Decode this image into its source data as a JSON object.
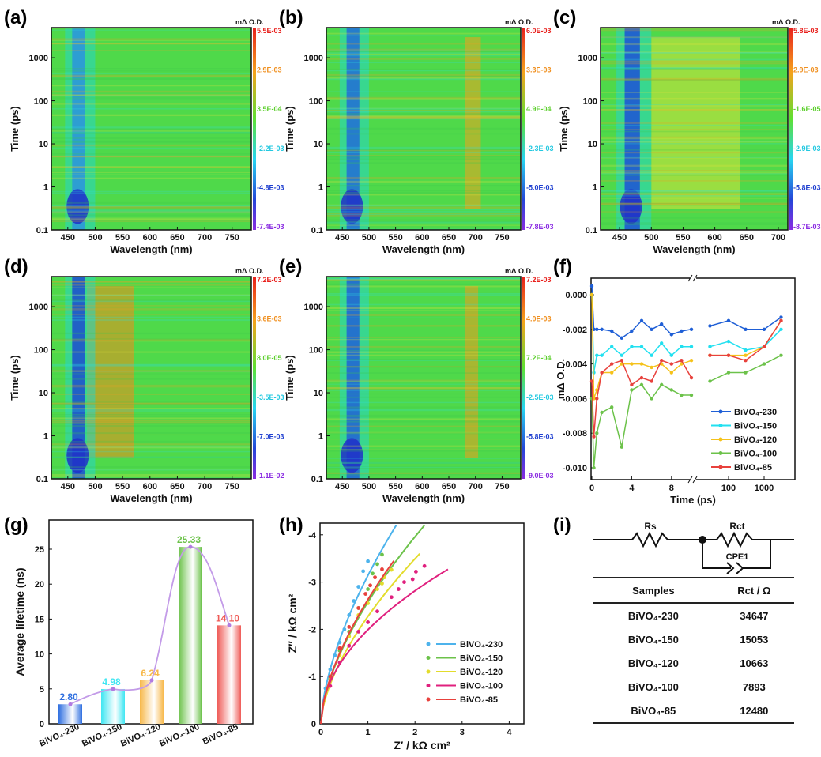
{
  "panel_labels": [
    "(a)",
    "(b)",
    "(c)",
    "(d)",
    "(e)",
    "(f)",
    "(g)",
    "(h)",
    "(i)"
  ],
  "chart_data": [
    {
      "id": "a",
      "type": "heatmap",
      "xlabel": "Wavelength (nm)",
      "ylabel": "Time (ps)",
      "xlim": [
        420,
        785
      ],
      "xticks": [
        "450",
        "500",
        "550",
        "600",
        "650",
        "700",
        "750"
      ],
      "yticks": [
        "0.1",
        "1",
        "10",
        "100",
        "1000"
      ],
      "ylim": [
        0.1,
        5000
      ],
      "yscale": "log",
      "colorbar_title": "mΔ O.D.",
      "colorbar_labels": [
        "5.5E-03",
        "2.9E-03",
        "3.5E-04",
        "-2.2E-03",
        "-4.8E-03",
        "-7.4E-03"
      ]
    },
    {
      "id": "b",
      "type": "heatmap",
      "xlabel": "Wavelength (nm)",
      "ylabel": "Time (ps)",
      "xlim": [
        420,
        785
      ],
      "xticks": [
        "450",
        "500",
        "550",
        "600",
        "650",
        "700",
        "750"
      ],
      "yticks": [
        "0.1",
        "1",
        "10",
        "100",
        "1000"
      ],
      "ylim": [
        0.1,
        5000
      ],
      "yscale": "log",
      "colorbar_title": "mΔ O.D.",
      "colorbar_labels": [
        "6.0E-03",
        "3.3E-03",
        "4.9E-04",
        "-2.3E-03",
        "-5.0E-03",
        "-7.8E-03"
      ]
    },
    {
      "id": "c",
      "type": "heatmap",
      "xlabel": "Wavelength (nm)",
      "ylabel": "Time (ps)",
      "xlim": [
        420,
        715
      ],
      "xticks": [
        "450",
        "500",
        "550",
        "600",
        "650",
        "700"
      ],
      "yticks": [
        "0.1",
        "1",
        "10",
        "100",
        "1000"
      ],
      "ylim": [
        0.1,
        5000
      ],
      "yscale": "log",
      "colorbar_title": "mΔ O.D.",
      "colorbar_labels": [
        "5.8E-03",
        "2.9E-03",
        "-1.6E-05",
        "-2.9E-03",
        "-5.8E-03",
        "-8.7E-03"
      ]
    },
    {
      "id": "d",
      "type": "heatmap",
      "xlabel": "Wavelength (nm)",
      "ylabel": "Time (ps)",
      "xlim": [
        420,
        785
      ],
      "xticks": [
        "450",
        "500",
        "550",
        "600",
        "650",
        "700",
        "750"
      ],
      "yticks": [
        "0.1",
        "1",
        "10",
        "100",
        "1000"
      ],
      "ylim": [
        0.1,
        5000
      ],
      "yscale": "log",
      "colorbar_title": "mΔ O.D.",
      "colorbar_labels": [
        "7.2E-03",
        "3.6E-03",
        "8.0E-05",
        "-3.5E-03",
        "-7.0E-03",
        "-1.1E-02"
      ]
    },
    {
      "id": "e",
      "type": "heatmap",
      "xlabel": "Wavelength (nm)",
      "ylabel": "Time (ps)",
      "xlim": [
        420,
        785
      ],
      "xticks": [
        "450",
        "500",
        "550",
        "600",
        "650",
        "700",
        "750"
      ],
      "yticks": [
        "0.1",
        "1",
        "10",
        "100",
        "1000"
      ],
      "ylim": [
        0.1,
        5000
      ],
      "yscale": "log",
      "colorbar_title": "mΔ O.D.",
      "colorbar_labels": [
        "7.2E-03",
        "4.0E-03",
        "7.2E-04",
        "-2.5E-03",
        "-5.8E-03",
        "-9.0E-03"
      ]
    },
    {
      "id": "f",
      "type": "line",
      "xlabel": "Time (ps)",
      "ylabel": "mΔ O.D.",
      "xscale": "linear 0-10 then log (broken axis)",
      "ylim": [
        -0.0107,
        0.001
      ],
      "xticks": [
        "0",
        "4",
        "8",
        "100",
        "1000"
      ],
      "yticks": [
        "0.000",
        "-0.002",
        "-0.004",
        "-0.006",
        "-0.008",
        "-0.010"
      ],
      "legend_position": "bottom-right",
      "x": [
        0,
        0.2,
        0.5,
        1,
        2,
        3,
        4,
        5,
        6,
        7,
        8,
        9,
        10,
        30,
        100,
        300,
        1000,
        3000
      ],
      "series": [
        {
          "name": "BiVO₄-230",
          "color": "#1f5fd6",
          "values": [
            0.0005,
            -0.002,
            -0.002,
            -0.002,
            -0.0021,
            -0.0025,
            -0.0021,
            -0.0015,
            -0.002,
            -0.0017,
            -0.0023,
            -0.0021,
            -0.002,
            -0.0018,
            -0.0015,
            -0.002,
            -0.002,
            -0.0013
          ]
        },
        {
          "name": "BiVO₄-150",
          "color": "#22e0f0",
          "values": [
            0,
            -0.0045,
            -0.0035,
            -0.0035,
            -0.003,
            -0.0035,
            -0.003,
            -0.003,
            -0.0035,
            -0.0028,
            -0.0035,
            -0.003,
            -0.003,
            -0.003,
            -0.0027,
            -0.0032,
            -0.003,
            -0.002
          ]
        },
        {
          "name": "BiVO₄-120",
          "color": "#f5c21b",
          "values": [
            0,
            -0.006,
            -0.0055,
            -0.0045,
            -0.0045,
            -0.004,
            -0.004,
            -0.004,
            -0.0042,
            -0.004,
            -0.0045,
            -0.004,
            -0.0038,
            -0.0035,
            -0.0035,
            -0.0035,
            -0.003,
            -0.0015
          ]
        },
        {
          "name": "BiVO₄-100",
          "color": "#6cc24a",
          "values": [
            -0.006,
            -0.01,
            -0.008,
            -0.0068,
            -0.0065,
            -0.0088,
            -0.0055,
            -0.0052,
            -0.006,
            -0.0052,
            -0.0055,
            -0.0058,
            -0.0058,
            -0.005,
            -0.0045,
            -0.0045,
            -0.004,
            -0.0035
          ]
        },
        {
          "name": "BiVO₄-85",
          "color": "#e8413c",
          "values": [
            -0.005,
            -0.0082,
            -0.006,
            -0.0045,
            -0.004,
            -0.0038,
            -0.0052,
            -0.0048,
            -0.005,
            -0.0038,
            -0.004,
            -0.0038,
            -0.0048,
            -0.0035,
            -0.0035,
            -0.0038,
            -0.003,
            -0.0015
          ]
        }
      ]
    },
    {
      "id": "g",
      "type": "bar",
      "ylabel": "Average lifetime (ns)",
      "ylim": [
        0,
        29.2
      ],
      "yticks": [
        "0",
        "5",
        "10",
        "15",
        "20",
        "25"
      ],
      "categories": [
        "BiVO₄-230",
        "BiVO₄-150",
        "BiVO₄-120",
        "BiVO₄-100",
        "BiVO₄-85"
      ],
      "values": [
        2.8,
        4.98,
        6.24,
        25.33,
        14.1
      ],
      "labels": [
        "2.80",
        "4.98",
        "6.24",
        "25.33",
        "14.10"
      ],
      "colors": [
        "#2f6fe0",
        "#3fe6f2",
        "#f7b84a",
        "#6cc24a",
        "#ef5b57"
      ],
      "trend_color": "#c39be8"
    },
    {
      "id": "h",
      "type": "scatter",
      "xlabel": "Z′ / kΩ cm²",
      "ylabel": "Z″ / kΩ cm²",
      "xlim": [
        0,
        4.32
      ],
      "ylim": [
        0,
        -4.3
      ],
      "xticks": [
        "0",
        "1",
        "2",
        "3",
        "4"
      ],
      "yticks": [
        "0",
        "-1",
        "-2",
        "-3",
        "-4"
      ],
      "legend_position": "bottom-right",
      "series": [
        {
          "name": "BiVO₄-230",
          "color": "#4db3ec",
          "fit_end": [
            1.6,
            -4.2
          ],
          "points": [
            [
              0.1,
              -0.75
            ],
            [
              0.2,
              -1.15
            ],
            [
              0.3,
              -1.45
            ],
            [
              0.4,
              -1.72
            ],
            [
              0.5,
              -2.0
            ],
            [
              0.6,
              -2.3
            ],
            [
              0.7,
              -2.6
            ],
            [
              0.8,
              -2.9
            ],
            [
              0.9,
              -3.23
            ],
            [
              1.0,
              -3.44
            ]
          ]
        },
        {
          "name": "BiVO₄-150",
          "color": "#6cc24a",
          "fit_end": [
            2.2,
            -4.2
          ],
          "points": [
            [
              0.2,
              -1.0
            ],
            [
              0.4,
              -1.55
            ],
            [
              0.6,
              -1.95
            ],
            [
              0.8,
              -2.45
            ],
            [
              1.0,
              -2.85
            ],
            [
              1.1,
              -3.18
            ],
            [
              1.2,
              -3.38
            ],
            [
              1.3,
              -3.58
            ]
          ]
        },
        {
          "name": "BiVO₄-120",
          "color": "#e3dc2c",
          "fit_end": [
            2.1,
            -3.6
          ],
          "points": [
            [
              0.2,
              -0.95
            ],
            [
              0.4,
              -1.45
            ],
            [
              0.6,
              -1.85
            ],
            [
              0.8,
              -2.3
            ],
            [
              1.0,
              -2.55
            ],
            [
              1.2,
              -2.85
            ],
            [
              1.3,
              -2.97
            ],
            [
              1.35,
              -3.1
            ],
            [
              1.5,
              -3.26
            ]
          ]
        },
        {
          "name": "BiVO₄-100",
          "color": "#e0207e",
          "fit_end": [
            2.7,
            -3.27
          ],
          "points": [
            [
              0.2,
              -0.8
            ],
            [
              0.4,
              -1.3
            ],
            [
              0.6,
              -1.65
            ],
            [
              0.8,
              -1.95
            ],
            [
              1.0,
              -2.15
            ],
            [
              1.2,
              -2.38
            ],
            [
              1.5,
              -2.68
            ],
            [
              1.65,
              -2.85
            ],
            [
              1.77,
              -3.0
            ],
            [
              1.95,
              -3.06
            ],
            [
              2.02,
              -3.22
            ],
            [
              2.2,
              -3.34
            ]
          ]
        },
        {
          "name": "BiVO₄-85",
          "color": "#e8413c",
          "fit_end": [
            1.55,
            -3.45
          ],
          "points": [
            [
              0.2,
              -1.0
            ],
            [
              0.4,
              -1.6
            ],
            [
              0.6,
              -2.05
            ],
            [
              0.8,
              -2.45
            ],
            [
              0.95,
              -2.75
            ],
            [
              1.05,
              -2.93
            ],
            [
              1.15,
              -3.1
            ],
            [
              1.3,
              -3.27
            ]
          ]
        }
      ]
    },
    {
      "id": "i",
      "type": "table",
      "circuit": {
        "rs": "Rs",
        "rct": "Rct",
        "cpe": "CPE1"
      },
      "columns": [
        "Samples",
        "Rct / Ω"
      ],
      "rows": [
        [
          "BiVO₄-230",
          "34647"
        ],
        [
          "BiVO₄-150",
          "15053"
        ],
        [
          "BiVO₄-120",
          "10663"
        ],
        [
          "BiVO₄-100",
          "7893"
        ],
        [
          "BiVO₄-85",
          "12480"
        ]
      ]
    }
  ]
}
